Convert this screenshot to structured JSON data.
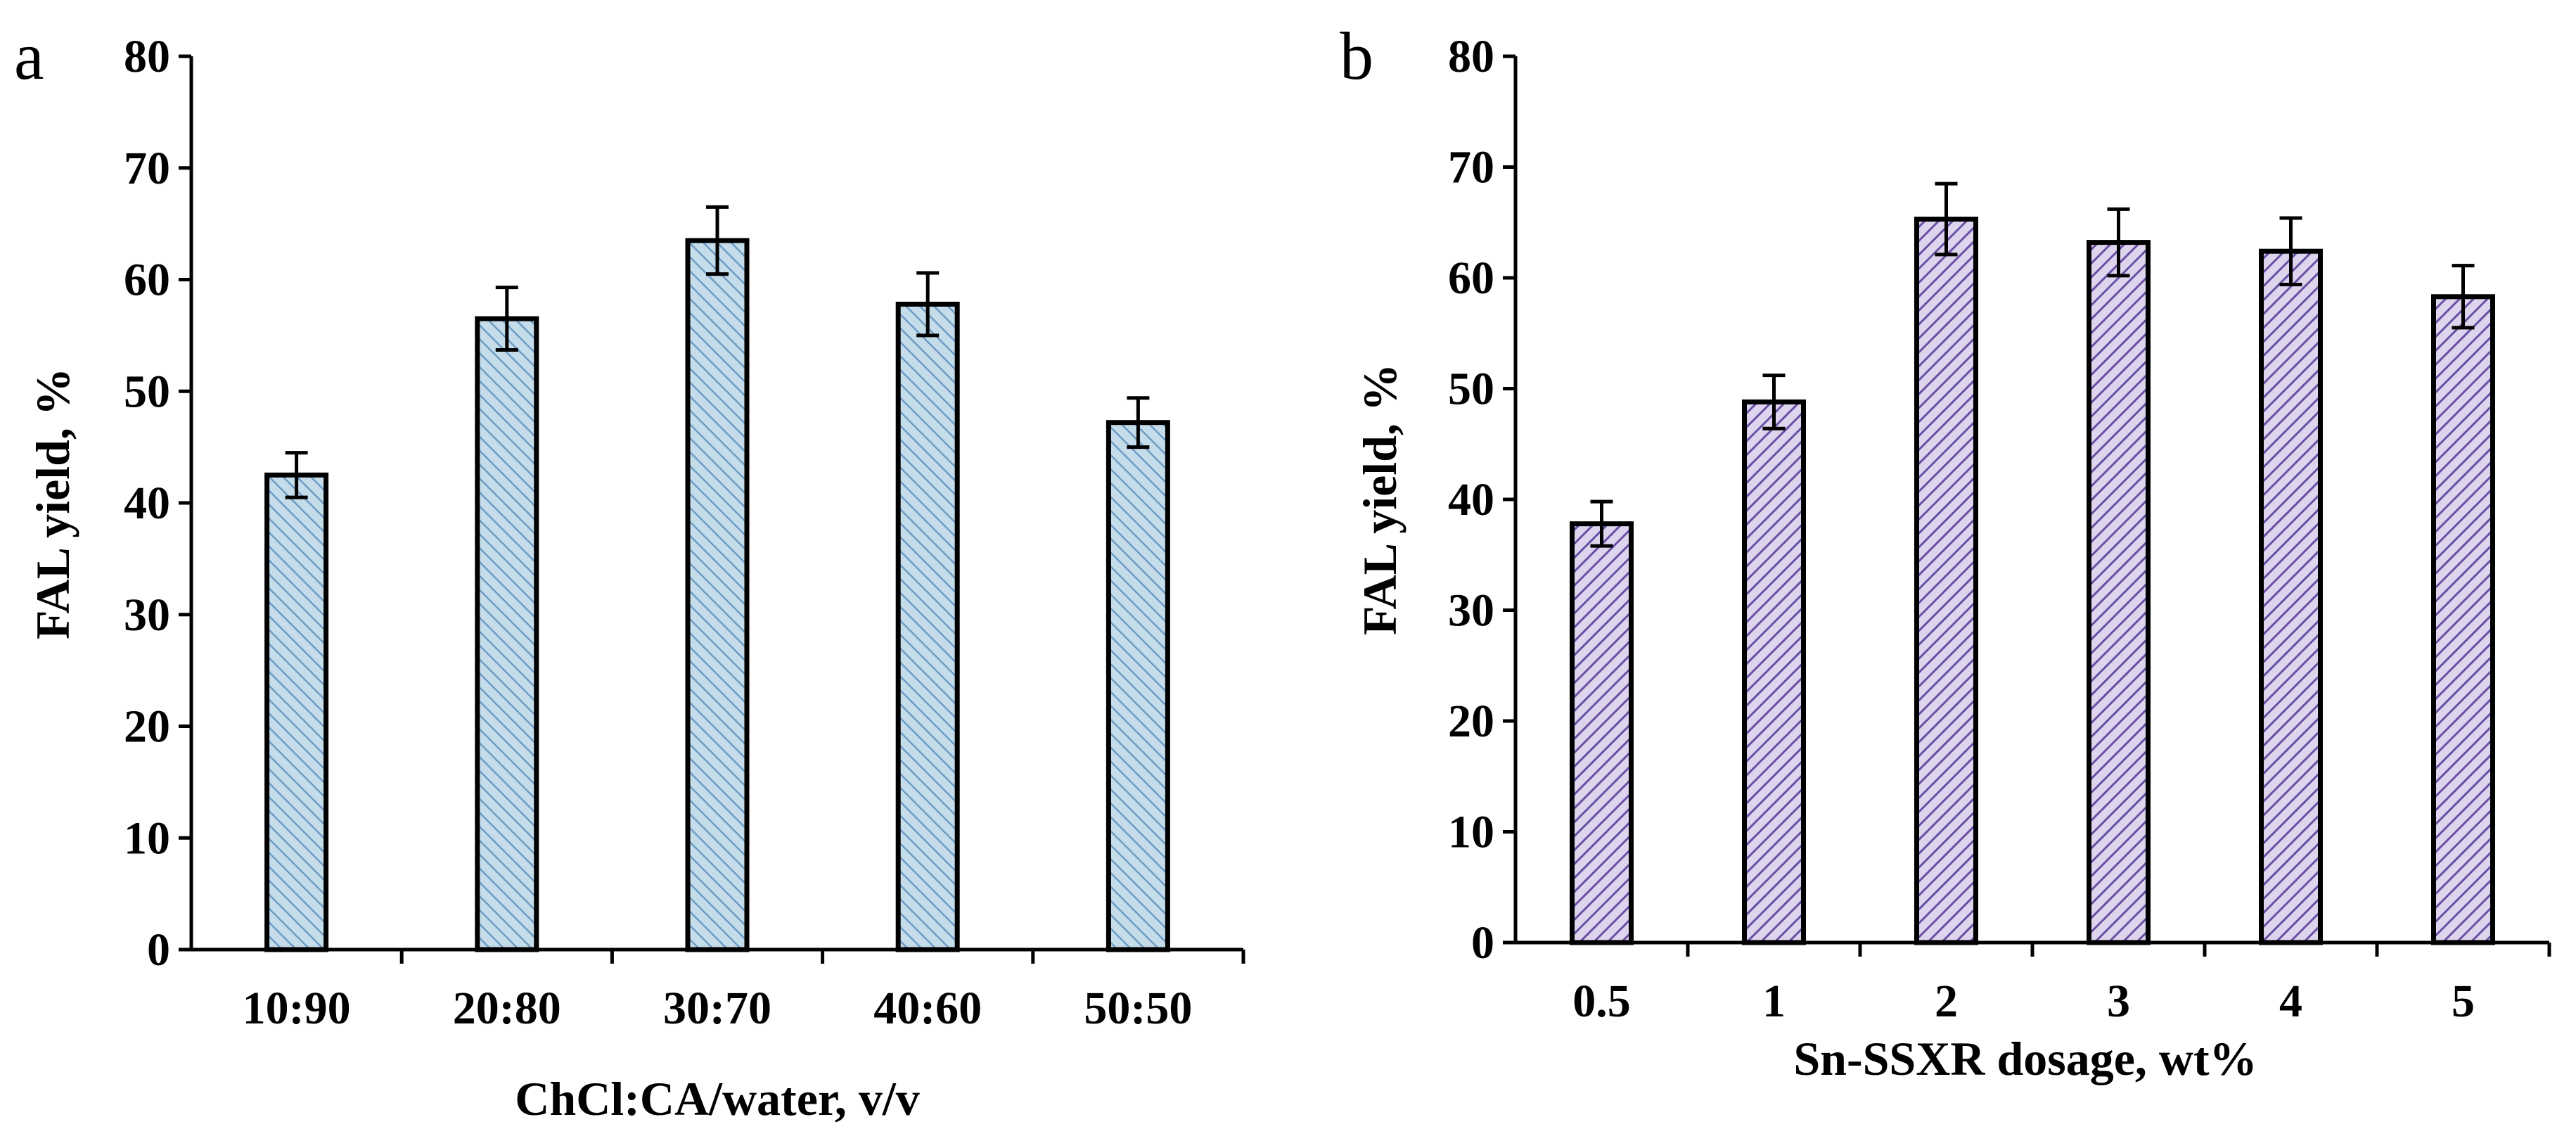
{
  "chart_data": [
    {
      "panel": "a",
      "type": "bar",
      "title": "",
      "xlabel": "ChCl:CA/water, v/v",
      "ylabel": "FAL yield, %",
      "categories": [
        "10:90",
        "20:80",
        "30:70",
        "40:60",
        "50:50"
      ],
      "values": [
        42.5,
        56.5,
        63.5,
        57.8,
        47.2
      ],
      "errors": [
        2.0,
        2.8,
        3.0,
        2.8,
        2.2
      ],
      "ylim": [
        0,
        80
      ],
      "yticks": [
        "0",
        "10",
        "20",
        "30",
        "40",
        "50",
        "60",
        "70",
        "80"
      ],
      "bar_color": "#c5dcea",
      "hatch_color": "#6f9cc4",
      "grid": false
    },
    {
      "panel": "b",
      "type": "bar",
      "title": "",
      "xlabel": "Sn-SSXR dosage, wt%",
      "ylabel": "FAL yield, %",
      "categories": [
        "0.5",
        "1",
        "2",
        "3",
        "4",
        "5"
      ],
      "values": [
        37.8,
        48.8,
        65.3,
        63.2,
        62.4,
        58.3
      ],
      "errors": [
        2.0,
        2.4,
        3.2,
        3.0,
        3.0,
        2.8
      ],
      "ylim": [
        0,
        80
      ],
      "yticks": [
        "0",
        "10",
        "20",
        "30",
        "40",
        "50",
        "60",
        "70",
        "80"
      ],
      "bar_color": "#ddd5ee",
      "hatch_color": "#6a4fa3",
      "grid": false
    }
  ]
}
